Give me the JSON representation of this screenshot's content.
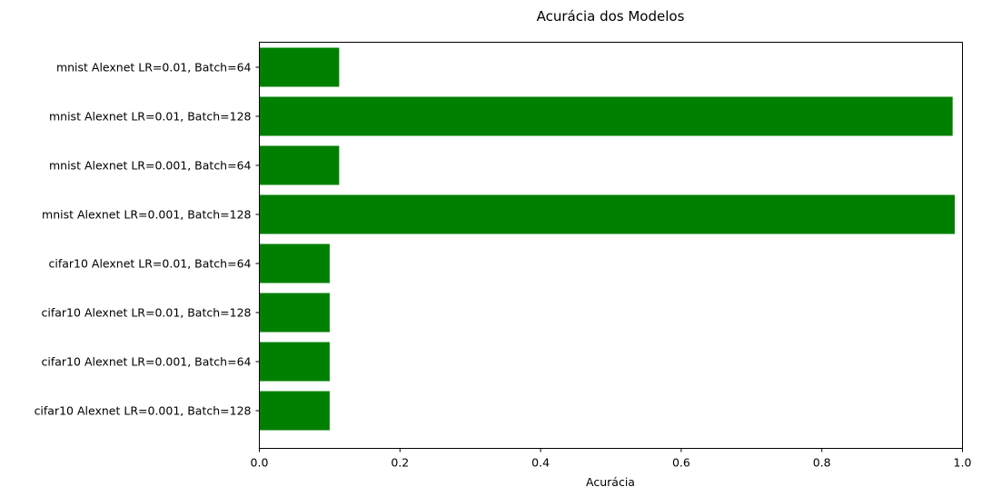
{
  "chart_data": {
    "type": "bar",
    "orientation": "horizontal",
    "title": "Acurácia dos Modelos",
    "xlabel": "Acurácia",
    "ylabel": "",
    "xlim": [
      0,
      1.0
    ],
    "x_ticks": [
      "0.0",
      "0.2",
      "0.4",
      "0.6",
      "0.8",
      "1.0"
    ],
    "x_tick_values": [
      0,
      0.2,
      0.4,
      0.6,
      0.8,
      1.0
    ],
    "grid": false,
    "bar_color": "#008000",
    "categories": [
      "mnist Alexnet LR=0.01, Batch=64",
      "mnist Alexnet LR=0.01, Batch=128",
      "mnist Alexnet LR=0.001, Batch=64",
      "mnist Alexnet LR=0.001, Batch=128",
      "cifar10 Alexnet LR=0.01, Batch=64",
      "cifar10 Alexnet LR=0.01, Batch=128",
      "cifar10 Alexnet LR=0.001, Batch=64",
      "cifar10 Alexnet LR=0.001, Batch=128"
    ],
    "values": [
      0.1135,
      0.986,
      0.1135,
      0.989,
      0.1,
      0.1,
      0.1,
      0.1
    ]
  }
}
